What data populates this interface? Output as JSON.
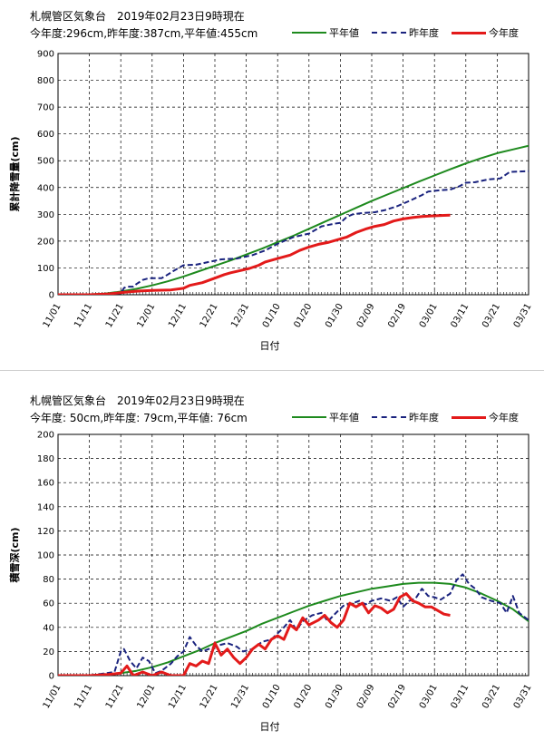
{
  "chart_data": [
    {
      "type": "line",
      "title_line1": "札幌管区気象台　2019年02月23日9時現在",
      "title_line2": "今年度:296cm,昨年度:387cm,平年値:455cm",
      "xlabel": "日付",
      "ylabel": "累計降雪量(cm)",
      "ylim": [
        0,
        900
      ],
      "yticks": [
        0,
        100,
        200,
        300,
        400,
        500,
        600,
        700,
        800,
        900
      ],
      "xticks": [
        "11/01",
        "11/11",
        "11/21",
        "12/01",
        "12/11",
        "12/21",
        "12/31",
        "01/10",
        "01/20",
        "01/30",
        "02/09",
        "02/19",
        "03/01",
        "03/11",
        "03/21",
        "03/31"
      ],
      "x_range_days": [
        0,
        150
      ],
      "grid": true,
      "legend": [
        "平年値",
        "昨年度",
        "今年度"
      ],
      "series": [
        {
          "name": "平年値",
          "color": "#1e8a1e",
          "style": "solid",
          "points": [
            [
              0,
              0
            ],
            [
              10,
              1
            ],
            [
              15,
              4
            ],
            [
              20,
              12
            ],
            [
              25,
              22
            ],
            [
              30,
              35
            ],
            [
              35,
              50
            ],
            [
              40,
              68
            ],
            [
              45,
              88
            ],
            [
              50,
              108
            ],
            [
              55,
              128
            ],
            [
              60,
              150
            ],
            [
              65,
              172
            ],
            [
              70,
              196
            ],
            [
              75,
              220
            ],
            [
              80,
              246
            ],
            [
              85,
              272
            ],
            [
              90,
              298
            ],
            [
              95,
              324
            ],
            [
              100,
              350
            ],
            [
              105,
              374
            ],
            [
              110,
              398
            ],
            [
              115,
              422
            ],
            [
              120,
              445
            ],
            [
              125,
              468
            ],
            [
              130,
              490
            ],
            [
              135,
              510
            ],
            [
              140,
              528
            ],
            [
              145,
              542
            ],
            [
              150,
              556
            ],
            [
              155,
              566
            ],
            [
              158,
              572
            ],
            [
              160,
              576
            ]
          ]
        },
        {
          "name": "昨年度",
          "color": "#1a237e",
          "style": "dashed",
          "points": [
            [
              0,
              0
            ],
            [
              10,
              0
            ],
            [
              20,
              5
            ],
            [
              21,
              25
            ],
            [
              22,
              30
            ],
            [
              24,
              30
            ],
            [
              25,
              40
            ],
            [
              27,
              55
            ],
            [
              29,
              62
            ],
            [
              33,
              62
            ],
            [
              34,
              68
            ],
            [
              37,
              90
            ],
            [
              40,
              110
            ],
            [
              44,
              112
            ],
            [
              48,
              122
            ],
            [
              52,
              132
            ],
            [
              57,
              135
            ],
            [
              62,
              148
            ],
            [
              66,
              165
            ],
            [
              70,
              190
            ],
            [
              75,
              215
            ],
            [
              80,
              228
            ],
            [
              84,
              255
            ],
            [
              88,
              265
            ],
            [
              90,
              268
            ],
            [
              92,
              290
            ],
            [
              94,
              300
            ],
            [
              97,
              305
            ],
            [
              101,
              308
            ],
            [
              104,
              315
            ],
            [
              108,
              330
            ],
            [
              112,
              350
            ],
            [
              116,
              372
            ],
            [
              118,
              385
            ],
            [
              122,
              390
            ],
            [
              125,
              392
            ],
            [
              128,
              405
            ],
            [
              130,
              418
            ],
            [
              133,
              420
            ],
            [
              137,
              430
            ],
            [
              141,
              434
            ],
            [
              144,
              458
            ],
            [
              148,
              460
            ],
            [
              152,
              462
            ],
            [
              160,
              462
            ]
          ]
        },
        {
          "name": "今年度",
          "color": "#e31a1a",
          "style": "solid",
          "points": [
            [
              0,
              0
            ],
            [
              10,
              0
            ],
            [
              16,
              3
            ],
            [
              22,
              10
            ],
            [
              26,
              14
            ],
            [
              30,
              16
            ],
            [
              36,
              18
            ],
            [
              40,
              24
            ],
            [
              42,
              35
            ],
            [
              46,
              45
            ],
            [
              50,
              62
            ],
            [
              53,
              75
            ],
            [
              55,
              82
            ],
            [
              58,
              90
            ],
            [
              61,
              98
            ],
            [
              64,
              110
            ],
            [
              66,
              122
            ],
            [
              70,
              135
            ],
            [
              74,
              148
            ],
            [
              77,
              165
            ],
            [
              80,
              178
            ],
            [
              83,
              188
            ],
            [
              86,
              195
            ],
            [
              89,
              205
            ],
            [
              92,
              215
            ],
            [
              95,
              232
            ],
            [
              98,
              245
            ],
            [
              101,
              255
            ],
            [
              104,
              262
            ],
            [
              107,
              275
            ],
            [
              110,
              283
            ],
            [
              113,
              288
            ],
            [
              116,
              292
            ],
            [
              119,
              294
            ],
            [
              123,
              296
            ],
            [
              125,
              297
            ]
          ]
        }
      ]
    },
    {
      "type": "line",
      "title_line1": "札幌管区気象台　2019年02月23日9時現在",
      "title_line2": "今年度: 50cm,昨年度: 79cm,平年値: 76cm",
      "xlabel": "日付",
      "ylabel": "積雪深(cm)",
      "ylim": [
        0,
        200
      ],
      "yticks": [
        0,
        20,
        40,
        60,
        80,
        100,
        120,
        140,
        160,
        180,
        200
      ],
      "xticks": [
        "11/01",
        "11/11",
        "11/21",
        "12/01",
        "12/11",
        "12/21",
        "12/31",
        "01/10",
        "01/20",
        "01/30",
        "02/09",
        "02/19",
        "03/01",
        "03/11",
        "03/21",
        "03/31"
      ],
      "x_range_days": [
        0,
        150
      ],
      "grid": true,
      "legend": [
        "平年値",
        "昨年度",
        "今年度"
      ],
      "series": [
        {
          "name": "平年値",
          "color": "#1e8a1e",
          "style": "solid",
          "points": [
            [
              0,
              0
            ],
            [
              10,
              0
            ],
            [
              15,
              1
            ],
            [
              20,
              2
            ],
            [
              25,
              4
            ],
            [
              30,
              7
            ],
            [
              35,
              11
            ],
            [
              40,
              16
            ],
            [
              45,
              21
            ],
            [
              50,
              27
            ],
            [
              55,
              32
            ],
            [
              60,
              37
            ],
            [
              65,
              43
            ],
            [
              70,
              48
            ],
            [
              75,
              53
            ],
            [
              80,
              58
            ],
            [
              85,
              62
            ],
            [
              90,
              66
            ],
            [
              95,
              69
            ],
            [
              100,
              72
            ],
            [
              105,
              74
            ],
            [
              110,
              76
            ],
            [
              115,
              77
            ],
            [
              120,
              77
            ],
            [
              125,
              76
            ],
            [
              130,
              73
            ],
            [
              135,
              68
            ],
            [
              140,
              62
            ],
            [
              145,
              55
            ],
            [
              150,
              45
            ],
            [
              155,
              33
            ],
            [
              160,
              21
            ]
          ]
        },
        {
          "name": "昨年度",
          "color": "#1a237e",
          "style": "dashed",
          "points": [
            [
              0,
              0
            ],
            [
              10,
              0
            ],
            [
              18,
              3
            ],
            [
              20,
              20
            ],
            [
              21,
              22
            ],
            [
              23,
              12
            ],
            [
              25,
              6
            ],
            [
              27,
              15
            ],
            [
              29,
              12
            ],
            [
              31,
              2
            ],
            [
              33,
              4
            ],
            [
              36,
              10
            ],
            [
              38,
              16
            ],
            [
              40,
              20
            ],
            [
              42,
              32
            ],
            [
              44,
              25
            ],
            [
              46,
              20
            ],
            [
              48,
              22
            ],
            [
              51,
              25
            ],
            [
              54,
              27
            ],
            [
              57,
              24
            ],
            [
              59,
              20
            ],
            [
              62,
              22
            ],
            [
              65,
              28
            ],
            [
              68,
              30
            ],
            [
              70,
              35
            ],
            [
              72,
              40
            ],
            [
              74,
              46
            ],
            [
              76,
              38
            ],
            [
              78,
              45
            ],
            [
              81,
              50
            ],
            [
              84,
              52
            ],
            [
              86,
              45
            ],
            [
              89,
              53
            ],
            [
              91,
              58
            ],
            [
              94,
              60
            ],
            [
              96,
              62
            ],
            [
              98,
              59
            ],
            [
              100,
              62
            ],
            [
              103,
              64
            ],
            [
              106,
              62
            ],
            [
              108,
              65
            ],
            [
              110,
              57
            ],
            [
              112,
              62
            ],
            [
              114,
              64
            ],
            [
              116,
              72
            ],
            [
              118,
              66
            ],
            [
              120,
              65
            ],
            [
              122,
              63
            ],
            [
              125,
              68
            ],
            [
              127,
              79
            ],
            [
              129,
              84
            ],
            [
              131,
              76
            ],
            [
              133,
              72
            ],
            [
              135,
              65
            ],
            [
              138,
              62
            ],
            [
              141,
              60
            ],
            [
              143,
              52
            ],
            [
              145,
              66
            ],
            [
              147,
              52
            ],
            [
              149,
              48
            ],
            [
              151,
              44
            ],
            [
              153,
              38
            ],
            [
              155,
              30
            ],
            [
              157,
              16
            ],
            [
              159,
              2
            ],
            [
              160,
              0
            ]
          ]
        },
        {
          "name": "今年度",
          "color": "#e31a1a",
          "style": "solid",
          "points": [
            [
              0,
              0
            ],
            [
              10,
              0
            ],
            [
              16,
              1
            ],
            [
              20,
              2
            ],
            [
              22,
              8
            ],
            [
              24,
              0
            ],
            [
              27,
              3
            ],
            [
              30,
              0
            ],
            [
              33,
              3
            ],
            [
              36,
              0
            ],
            [
              40,
              0
            ],
            [
              42,
              10
            ],
            [
              44,
              8
            ],
            [
              46,
              12
            ],
            [
              48,
              10
            ],
            [
              50,
              27
            ],
            [
              52,
              17
            ],
            [
              54,
              22
            ],
            [
              56,
              15
            ],
            [
              58,
              10
            ],
            [
              60,
              15
            ],
            [
              62,
              22
            ],
            [
              64,
              26
            ],
            [
              66,
              22
            ],
            [
              68,
              30
            ],
            [
              70,
              33
            ],
            [
              72,
              30
            ],
            [
              74,
              42
            ],
            [
              76,
              38
            ],
            [
              78,
              48
            ],
            [
              80,
              42
            ],
            [
              83,
              46
            ],
            [
              85,
              50
            ],
            [
              87,
              44
            ],
            [
              89,
              40
            ],
            [
              91,
              46
            ],
            [
              93,
              60
            ],
            [
              95,
              57
            ],
            [
              97,
              60
            ],
            [
              99,
              52
            ],
            [
              101,
              58
            ],
            [
              103,
              56
            ],
            [
              105,
              52
            ],
            [
              107,
              55
            ],
            [
              109,
              65
            ],
            [
              111,
              68
            ],
            [
              113,
              62
            ],
            [
              115,
              60
            ],
            [
              117,
              57
            ],
            [
              119,
              57
            ],
            [
              121,
              54
            ],
            [
              123,
              51
            ],
            [
              125,
              50
            ]
          ]
        }
      ]
    }
  ]
}
